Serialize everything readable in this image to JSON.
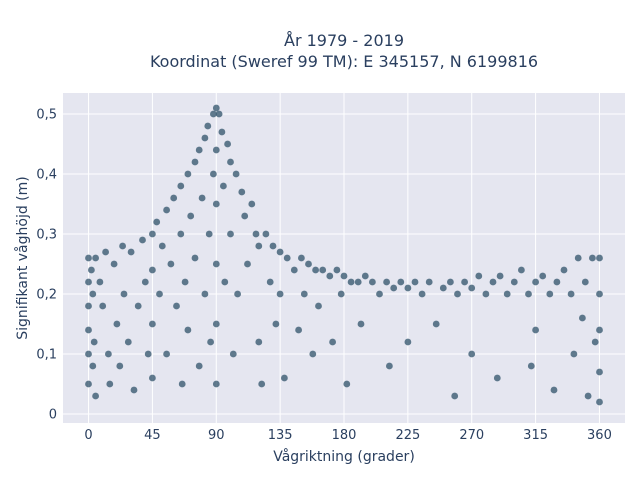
{
  "chart_data": {
    "type": "scatter",
    "title_line1": "År 1979 - 2019",
    "title_line2": "Koordinat (Sweref 99 TM): E 345157, N 6199816",
    "xlabel": "Vågriktning (grader)",
    "ylabel": "Signifikant våghöjd (m)",
    "xlim": [
      -18,
      378
    ],
    "ylim": [
      -0.015,
      0.535
    ],
    "x_ticks": [
      0,
      45,
      90,
      135,
      180,
      225,
      270,
      315,
      360
    ],
    "x_tick_labels": [
      "0",
      "45",
      "90",
      "135",
      "180",
      "225",
      "270",
      "315",
      "360"
    ],
    "y_ticks": [
      0,
      0.1,
      0.2,
      0.3,
      0.4,
      0.5
    ],
    "y_tick_labels": [
      "0",
      "0,1",
      "0,2",
      "0,3",
      "0,4",
      "0,5"
    ],
    "grid": true,
    "colors": {
      "point": "#2f5169",
      "plot_bg": "#e5e6f0",
      "grid": "#ffffff",
      "text": "#2a3f5f"
    },
    "series": [
      {
        "points": [
          [
            0,
            0.26
          ],
          [
            0,
            0.22
          ],
          [
            0,
            0.18
          ],
          [
            0,
            0.14
          ],
          [
            0,
            0.1
          ],
          [
            0,
            0.05
          ],
          [
            2,
            0.24
          ],
          [
            3,
            0.2
          ],
          [
            3,
            0.08
          ],
          [
            4,
            0.12
          ],
          [
            5,
            0.26
          ],
          [
            5,
            0.03
          ],
          [
            8,
            0.22
          ],
          [
            10,
            0.18
          ],
          [
            12,
            0.27
          ],
          [
            14,
            0.1
          ],
          [
            15,
            0.05
          ],
          [
            18,
            0.25
          ],
          [
            20,
            0.15
          ],
          [
            22,
            0.08
          ],
          [
            24,
            0.28
          ],
          [
            25,
            0.2
          ],
          [
            28,
            0.12
          ],
          [
            30,
            0.27
          ],
          [
            32,
            0.04
          ],
          [
            35,
            0.18
          ],
          [
            38,
            0.29
          ],
          [
            40,
            0.22
          ],
          [
            42,
            0.1
          ],
          [
            45,
            0.3
          ],
          [
            45,
            0.24
          ],
          [
            45,
            0.15
          ],
          [
            45,
            0.06
          ],
          [
            48,
            0.32
          ],
          [
            50,
            0.2
          ],
          [
            52,
            0.28
          ],
          [
            55,
            0.34
          ],
          [
            55,
            0.1
          ],
          [
            58,
            0.25
          ],
          [
            60,
            0.36
          ],
          [
            62,
            0.18
          ],
          [
            65,
            0.38
          ],
          [
            65,
            0.3
          ],
          [
            66,
            0.05
          ],
          [
            68,
            0.22
          ],
          [
            70,
            0.4
          ],
          [
            70,
            0.14
          ],
          [
            72,
            0.33
          ],
          [
            75,
            0.42
          ],
          [
            75,
            0.26
          ],
          [
            78,
            0.44
          ],
          [
            78,
            0.08
          ],
          [
            80,
            0.36
          ],
          [
            82,
            0.46
          ],
          [
            82,
            0.2
          ],
          [
            84,
            0.48
          ],
          [
            85,
            0.3
          ],
          [
            86,
            0.12
          ],
          [
            88,
            0.5
          ],
          [
            88,
            0.4
          ],
          [
            90,
            0.51
          ],
          [
            90,
            0.44
          ],
          [
            90,
            0.35
          ],
          [
            90,
            0.25
          ],
          [
            90,
            0.15
          ],
          [
            90,
            0.05
          ],
          [
            92,
            0.5
          ],
          [
            94,
            0.47
          ],
          [
            95,
            0.38
          ],
          [
            96,
            0.22
          ],
          [
            98,
            0.45
          ],
          [
            100,
            0.42
          ],
          [
            100,
            0.3
          ],
          [
            102,
            0.1
          ],
          [
            104,
            0.4
          ],
          [
            105,
            0.2
          ],
          [
            108,
            0.37
          ],
          [
            110,
            0.33
          ],
          [
            112,
            0.25
          ],
          [
            115,
            0.35
          ],
          [
            118,
            0.3
          ],
          [
            120,
            0.28
          ],
          [
            120,
            0.12
          ],
          [
            122,
            0.05
          ],
          [
            125,
            0.3
          ],
          [
            128,
            0.22
          ],
          [
            130,
            0.28
          ],
          [
            132,
            0.15
          ],
          [
            135,
            0.27
          ],
          [
            135,
            0.2
          ],
          [
            138,
            0.06
          ],
          [
            140,
            0.26
          ],
          [
            145,
            0.24
          ],
          [
            148,
            0.14
          ],
          [
            150,
            0.26
          ],
          [
            152,
            0.2
          ],
          [
            155,
            0.25
          ],
          [
            158,
            0.1
          ],
          [
            160,
            0.24
          ],
          [
            162,
            0.18
          ],
          [
            165,
            0.24
          ],
          [
            170,
            0.23
          ],
          [
            172,
            0.12
          ],
          [
            175,
            0.24
          ],
          [
            178,
            0.2
          ],
          [
            180,
            0.23
          ],
          [
            182,
            0.05
          ],
          [
            185,
            0.22
          ],
          [
            190,
            0.22
          ],
          [
            192,
            0.15
          ],
          [
            195,
            0.23
          ],
          [
            200,
            0.22
          ],
          [
            205,
            0.2
          ],
          [
            210,
            0.22
          ],
          [
            212,
            0.08
          ],
          [
            215,
            0.21
          ],
          [
            220,
            0.22
          ],
          [
            225,
            0.21
          ],
          [
            225,
            0.12
          ],
          [
            230,
            0.22
          ],
          [
            235,
            0.2
          ],
          [
            240,
            0.22
          ],
          [
            245,
            0.15
          ],
          [
            250,
            0.21
          ],
          [
            255,
            0.22
          ],
          [
            258,
            0.03
          ],
          [
            260,
            0.2
          ],
          [
            265,
            0.22
          ],
          [
            270,
            0.21
          ],
          [
            270,
            0.1
          ],
          [
            275,
            0.23
          ],
          [
            280,
            0.2
          ],
          [
            285,
            0.22
          ],
          [
            288,
            0.06
          ],
          [
            290,
            0.23
          ],
          [
            295,
            0.2
          ],
          [
            300,
            0.22
          ],
          [
            305,
            0.24
          ],
          [
            310,
            0.2
          ],
          [
            312,
            0.08
          ],
          [
            315,
            0.22
          ],
          [
            315,
            0.14
          ],
          [
            320,
            0.23
          ],
          [
            325,
            0.2
          ],
          [
            328,
            0.04
          ],
          [
            330,
            0.22
          ],
          [
            335,
            0.24
          ],
          [
            340,
            0.2
          ],
          [
            342,
            0.1
          ],
          [
            345,
            0.26
          ],
          [
            348,
            0.16
          ],
          [
            350,
            0.22
          ],
          [
            352,
            0.03
          ],
          [
            355,
            0.26
          ],
          [
            357,
            0.12
          ],
          [
            360,
            0.26
          ],
          [
            360,
            0.2
          ],
          [
            360,
            0.14
          ],
          [
            360,
            0.07
          ],
          [
            360,
            0.02
          ]
        ]
      }
    ]
  }
}
